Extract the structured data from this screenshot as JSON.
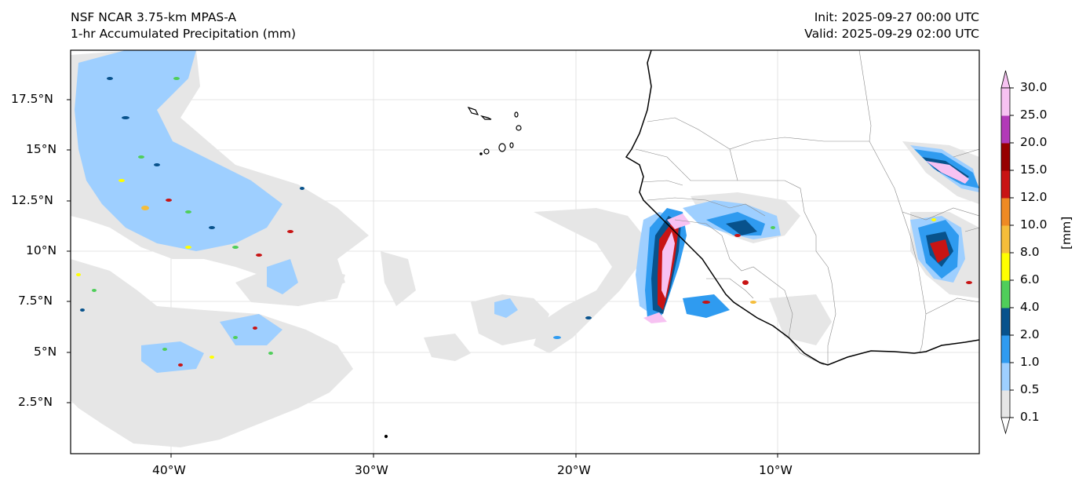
{
  "header": {
    "title_line1": "NSF NCAR 3.75-km MPAS-A",
    "title_line2": "1-hr Accumulated Precipitation (mm)",
    "init_text": "Init: 2025-09-27 00:00 UTC",
    "valid_text": "Valid: 2025-09-29 02:00 UTC"
  },
  "axes": {
    "y_ticks": [
      "17.5°N",
      "15°N",
      "12.5°N",
      "10°N",
      "7.5°N",
      "5°N",
      "2.5°N"
    ],
    "x_ticks": [
      "40°W",
      "30°W",
      "20°W",
      "10°W"
    ]
  },
  "colorbar": {
    "units": "[mm]",
    "levels": [
      "0.1",
      "0.5",
      "1.0",
      "2.0",
      "4.0",
      "6.0",
      "8.0",
      "10.0",
      "12.0",
      "15.0",
      "20.0",
      "25.0",
      "30.0"
    ],
    "colors": [
      "#e6e6e6",
      "#9ecfff",
      "#2f9bf0",
      "#08528c",
      "#4fce5a",
      "#ffff00",
      "#f5bd3a",
      "#ee8a23",
      "#c81414",
      "#960000",
      "#b23ab8",
      "#f7c2f2"
    ],
    "over_color": "#f7c2f2",
    "under_color": "#ffffff"
  },
  "map": {
    "coastline_color": "#000000",
    "border_color": "#8a8a8a",
    "grid_color": "#d8d8d8"
  }
}
